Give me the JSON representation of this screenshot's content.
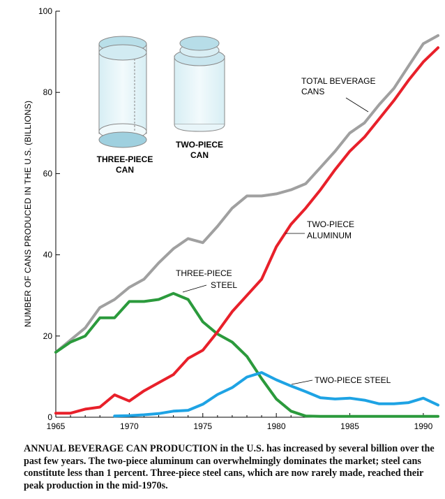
{
  "chart_data": {
    "type": "line",
    "title": "",
    "xlabel": "",
    "ylabel": "NUMBER OF CANS PRODUCED IN THE U.S. (BILLIONS)",
    "xlim": [
      1965,
      1991
    ],
    "ylim": [
      0,
      100
    ],
    "x_ticks": [
      "1965",
      "1970",
      "1975",
      "1980",
      "1985",
      "1990"
    ],
    "y_ticks": [
      "0",
      "20",
      "40",
      "60",
      "80",
      "100"
    ],
    "grid": false,
    "series": [
      {
        "name": "TOTAL BEVERAGE CANS",
        "color": "#a0a0a0",
        "x": [
          1965,
          1966,
          1967,
          1968,
          1969,
          1970,
          1971,
          1972,
          1973,
          1974,
          1975,
          1976,
          1977,
          1978,
          1979,
          1980,
          1981,
          1982,
          1983,
          1984,
          1985,
          1986,
          1987,
          1988,
          1989,
          1990,
          1991
        ],
        "y": [
          16,
          19,
          22,
          27,
          29,
          32,
          34,
          38,
          41.5,
          44,
          43,
          47,
          51.5,
          54.5,
          54.5,
          55,
          56,
          57.5,
          61.5,
          65.5,
          70,
          72.5,
          77,
          81,
          86.5,
          92,
          94
        ]
      },
      {
        "name": "TWO-PIECE ALUMINUM",
        "color": "#e8202a",
        "x": [
          1965,
          1966,
          1967,
          1968,
          1969,
          1970,
          1971,
          1972,
          1973,
          1974,
          1975,
          1976,
          1977,
          1978,
          1979,
          1980,
          1981,
          1982,
          1983,
          1984,
          1985,
          1986,
          1987,
          1988,
          1989,
          1990,
          1991
        ],
        "y": [
          1,
          1,
          2,
          2.5,
          5.5,
          4,
          6.5,
          8.5,
          10.5,
          14.5,
          16.5,
          21,
          26,
          30,
          34,
          42,
          47.5,
          51.5,
          56,
          61,
          65.5,
          69,
          73.5,
          78,
          83,
          87.5,
          91
        ]
      },
      {
        "name": "THREE-PIECE STEEL",
        "color": "#2b9a3c",
        "x": [
          1965,
          1966,
          1967,
          1968,
          1969,
          1970,
          1971,
          1972,
          1973,
          1974,
          1975,
          1976,
          1977,
          1978,
          1979,
          1980,
          1981,
          1982,
          1983,
          1984,
          1985,
          1986,
          1987,
          1988,
          1989,
          1990,
          1991
        ],
        "y": [
          16,
          18.5,
          20,
          24.5,
          24.5,
          28.5,
          28.5,
          29,
          30.5,
          29,
          23.5,
          20.5,
          18.5,
          15,
          9.5,
          4.5,
          1.5,
          0.3,
          0.2,
          0.2,
          0.2,
          0.2,
          0.2,
          0.2,
          0.2,
          0.2,
          0.2
        ]
      },
      {
        "name": "TWO-PIECE STEEL",
        "color": "#1ea3e4",
        "x": [
          1969,
          1970,
          1971,
          1972,
          1973,
          1974,
          1975,
          1976,
          1977,
          1978,
          1979,
          1980,
          1981,
          1982,
          1983,
          1984,
          1985,
          1986,
          1987,
          1988,
          1989,
          1990,
          1991
        ],
        "y": [
          0.3,
          0.4,
          0.6,
          0.9,
          1.5,
          1.7,
          3.2,
          5.6,
          7.3,
          9.9,
          11,
          9.2,
          7.7,
          6.3,
          4.8,
          4.5,
          4.7,
          4.2,
          3.3,
          3.3,
          3.6,
          4.7,
          3.0
        ]
      }
    ],
    "annotations": [
      {
        "lines": [
          "TOTAL BEVERAGE",
          "CANS"
        ],
        "series": 0
      },
      {
        "lines": [
          "TWO-PIECE",
          "ALUMINUM"
        ],
        "series": 1
      },
      {
        "lines": [
          "THREE-PIECE",
          "STEEL"
        ],
        "series": 2
      },
      {
        "lines": [
          "TWO-PIECE STEEL"
        ],
        "series": 3
      }
    ]
  },
  "illustration": {
    "three_piece_label": [
      "THREE-PIECE",
      "CAN"
    ],
    "two_piece_label": [
      "TWO-PIECE",
      "CAN"
    ]
  },
  "caption": {
    "lead": "ANNUAL BEVERAGE CAN PRODUCTION",
    "text": " in the U.S. has increased by several billion over the past few years. The two-piece aluminum can overwhelmingly dominates the market; steel cans constitute less than 1 percent. Three-piece steel cans, which are now rarely made, reached their peak production in the mid-1970s."
  }
}
